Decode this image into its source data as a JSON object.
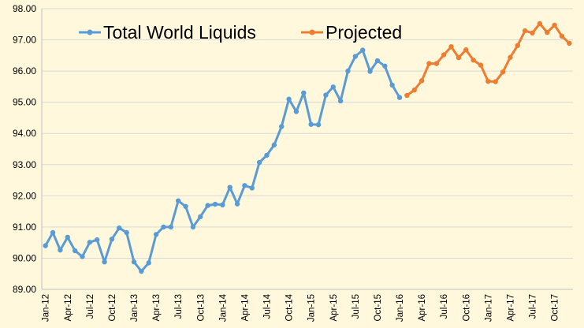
{
  "chart_data": {
    "type": "line",
    "title": "",
    "xlabel": "",
    "ylabel": "",
    "ylim": [
      89.0,
      98.0
    ],
    "y_ticks": [
      "89.00",
      "90.00",
      "91.00",
      "92.00",
      "93.00",
      "94.00",
      "95.00",
      "96.00",
      "97.00",
      "98.00"
    ],
    "x_tick_labels": [
      "Jan-12",
      "Apr-12",
      "Jul-12",
      "Oct-12",
      "Jan-13",
      "Apr-13",
      "Jul-13",
      "Oct-13",
      "Jan-14",
      "Apr-14",
      "Jul-14",
      "Oct-14",
      "Jan-15",
      "Apr-15",
      "Jul-15",
      "Oct-15",
      "Jan-16",
      "Apr-16",
      "Jul-16",
      "Oct-16",
      "Jan-17",
      "Apr-17",
      "Jul-17",
      "Oct-17"
    ],
    "grid": "horizontal",
    "legend_position": "top",
    "series": [
      {
        "name": "Total World Liquids",
        "color": "#5b9bd5",
        "start_month": "Jan-12",
        "values": [
          90.4,
          90.82,
          90.26,
          90.67,
          90.24,
          90.05,
          90.51,
          90.59,
          89.88,
          90.61,
          90.97,
          90.82,
          89.88,
          89.58,
          89.85,
          90.76,
          91.0,
          91.0,
          91.84,
          91.66,
          91.0,
          91.33,
          91.69,
          91.73,
          91.71,
          92.27,
          91.74,
          92.33,
          92.25,
          93.07,
          93.3,
          93.63,
          94.22,
          95.1,
          94.7,
          95.3,
          94.29,
          94.28,
          95.23,
          95.49,
          95.04,
          96.0,
          96.47,
          96.67,
          95.99,
          96.33,
          96.16,
          95.55,
          95.15
        ]
      },
      {
        "name": "Projected",
        "color": "#ed7d31",
        "start_month": "Feb-16",
        "values": [
          95.22,
          95.39,
          95.69,
          96.24,
          96.24,
          96.52,
          96.78,
          96.43,
          96.68,
          96.35,
          96.19,
          95.67,
          95.66,
          95.97,
          96.44,
          96.82,
          97.29,
          97.22,
          97.52,
          97.24,
          97.47,
          97.12,
          96.89
        ]
      }
    ]
  }
}
